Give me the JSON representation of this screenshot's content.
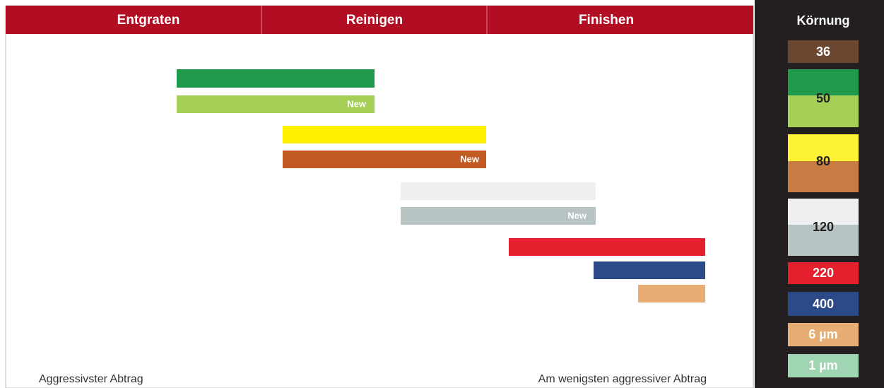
{
  "header": {
    "sections": [
      "Entgraten",
      "Reinigen",
      "Finishen"
    ]
  },
  "bars": {
    "new_labels": [
      "New",
      "New",
      "New"
    ]
  },
  "axis": {
    "left": "Aggressivster Abtrag",
    "right": "Am wenigsten aggressiver Abtrag"
  },
  "legend": {
    "title": "Körnung",
    "grits": [
      "36",
      "50",
      "80",
      "120",
      "220",
      "400",
      "6 µm",
      "1 µm"
    ]
  }
}
